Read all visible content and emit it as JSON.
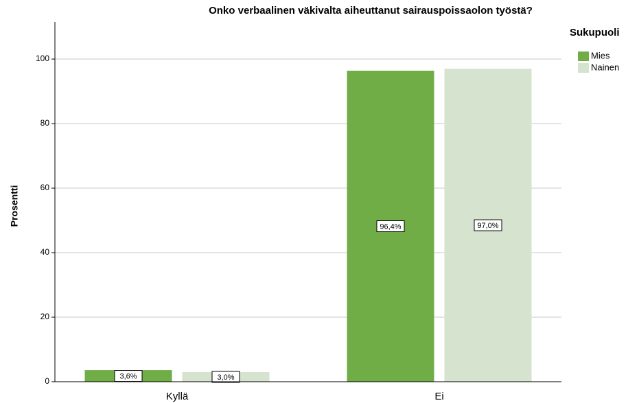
{
  "chart_data": {
    "type": "bar",
    "title": "Onko verbaalinen väkivalta aiheuttanut sairauspoissaolon työstä?",
    "y_label": "Prosentti",
    "legend_title": "Sukupuoli",
    "categories": [
      "Kyllä",
      "Ei"
    ],
    "series": [
      {
        "name": "Mies",
        "color": "#70ad47",
        "values": [
          3.6,
          96.4
        ],
        "value_labels": [
          "3,6%",
          "96,4%"
        ]
      },
      {
        "name": "Nainen",
        "color": "#d5e3cf",
        "values": [
          3.0,
          97.0
        ],
        "value_labels": [
          "3,0%",
          "97,0%"
        ]
      }
    ],
    "ylim": [
      0,
      111.5
    ],
    "yticks": [
      0,
      20,
      40,
      60,
      80,
      100
    ],
    "grid": true,
    "legend": "right"
  }
}
